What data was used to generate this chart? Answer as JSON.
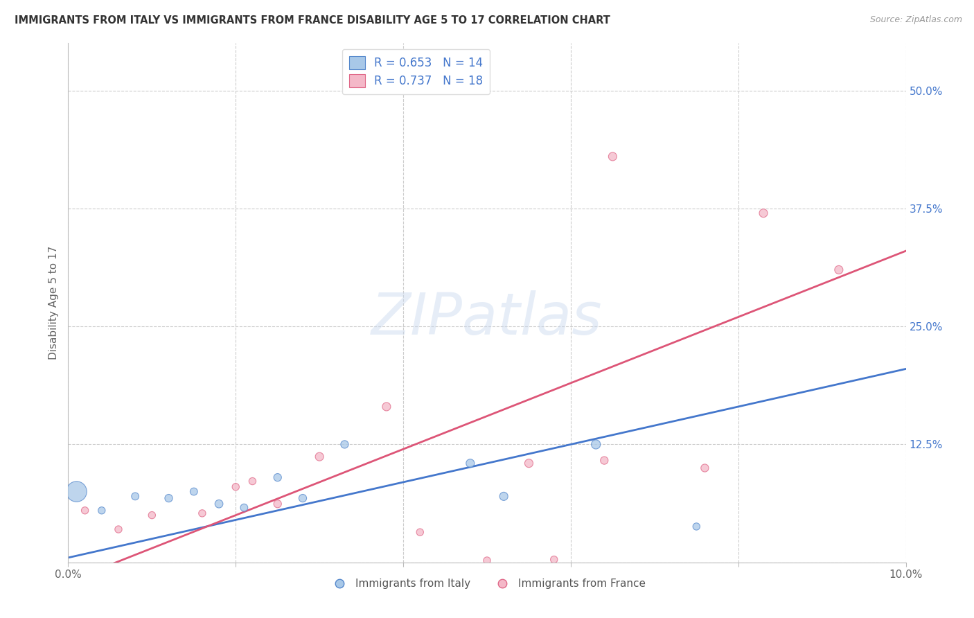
{
  "title": "IMMIGRANTS FROM ITALY VS IMMIGRANTS FROM FRANCE DISABILITY AGE 5 TO 17 CORRELATION CHART",
  "source": "Source: ZipAtlas.com",
  "ylabel": "Disability Age 5 to 17",
  "xlim": [
    0.0,
    0.1
  ],
  "ylim": [
    0.0,
    0.55
  ],
  "xticks": [
    0.0,
    0.02,
    0.04,
    0.06,
    0.08,
    0.1
  ],
  "xticklabels": [
    "0.0%",
    "",
    "",
    "",
    "",
    "10.0%"
  ],
  "yticks": [
    0.0,
    0.125,
    0.25,
    0.375,
    0.5
  ],
  "yticklabels_right": [
    "",
    "12.5%",
    "25.0%",
    "37.5%",
    "50.0%"
  ],
  "italy_color": "#a8c8e8",
  "france_color": "#f4b8c8",
  "italy_edge_color": "#5588cc",
  "france_edge_color": "#e06888",
  "italy_line_color": "#4477cc",
  "france_line_color": "#dd5577",
  "axis_label_color": "#4477cc",
  "legend_italy_label": "R = 0.653   N = 14",
  "legend_france_label": "R = 0.737   N = 18",
  "watermark": "ZIPatlas",
  "italy_x": [
    0.001,
    0.004,
    0.008,
    0.012,
    0.015,
    0.018,
    0.021,
    0.025,
    0.028,
    0.033,
    0.048,
    0.052,
    0.063,
    0.075
  ],
  "italy_y": [
    0.075,
    0.055,
    0.07,
    0.068,
    0.075,
    0.062,
    0.058,
    0.09,
    0.068,
    0.125,
    0.105,
    0.07,
    0.125,
    0.038
  ],
  "italy_size": [
    450,
    55,
    60,
    65,
    60,
    70,
    60,
    65,
    65,
    65,
    75,
    75,
    90,
    55
  ],
  "france_x": [
    0.002,
    0.006,
    0.01,
    0.016,
    0.02,
    0.022,
    0.025,
    0.03,
    0.038,
    0.042,
    0.05,
    0.055,
    0.058,
    0.064,
    0.065,
    0.076,
    0.083,
    0.092
  ],
  "france_y": [
    0.055,
    0.035,
    0.05,
    0.052,
    0.08,
    0.086,
    0.062,
    0.112,
    0.165,
    0.032,
    0.002,
    0.105,
    0.003,
    0.108,
    0.43,
    0.1,
    0.37,
    0.31
  ],
  "france_size": [
    55,
    55,
    55,
    55,
    55,
    55,
    65,
    75,
    75,
    55,
    55,
    75,
    55,
    65,
    75,
    65,
    75,
    75
  ],
  "background_color": "#ffffff",
  "grid_color": "#cccccc",
  "italy_legend_color": "#a8c8e8",
  "france_legend_color": "#f4b8c8"
}
